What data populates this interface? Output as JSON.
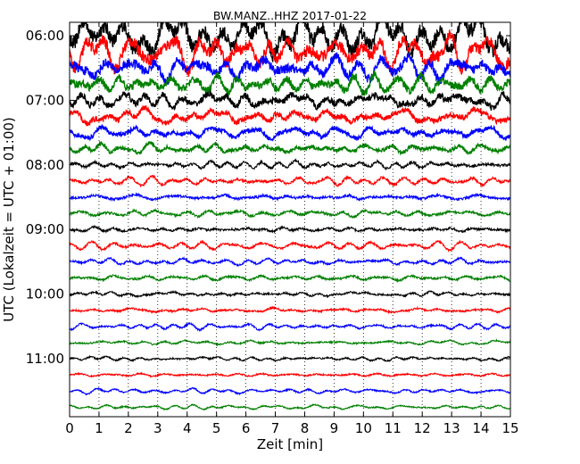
{
  "chart_data": {
    "type": "line",
    "title": "BW.MANZ..HHZ 2017-01-22",
    "xlabel": "Zeit  [min]",
    "ylabel": "UTC (Lokalzeit = UTC + 01:00)",
    "xlim": [
      0,
      15
    ],
    "xticks": [
      "0",
      "1",
      "2",
      "3",
      "4",
      "5",
      "6",
      "7",
      "8",
      "9",
      "10",
      "11",
      "12",
      "13",
      "14",
      "15"
    ],
    "yticks": [
      "06:00",
      "07:00",
      "08:00",
      "09:00",
      "10:00",
      "11:00"
    ],
    "ytick_trace_index": [
      0,
      4,
      8,
      12,
      16,
      20
    ],
    "grid": "vertical-dotted",
    "trace_interval_min": 15,
    "trace_start": "06:00",
    "colors": [
      "#000000",
      "#ff0000",
      "#0000ff",
      "#008000"
    ],
    "trace_amplitudes": [
      3.0,
      2.4,
      1.9,
      1.55,
      1.3,
      1.05,
      0.85,
      0.7,
      0.55,
      0.55,
      0.5,
      0.5,
      0.45,
      0.45,
      0.4,
      0.4,
      0.35,
      0.35,
      0.35,
      0.3,
      0.3,
      0.3,
      0.28,
      0.25
    ]
  }
}
